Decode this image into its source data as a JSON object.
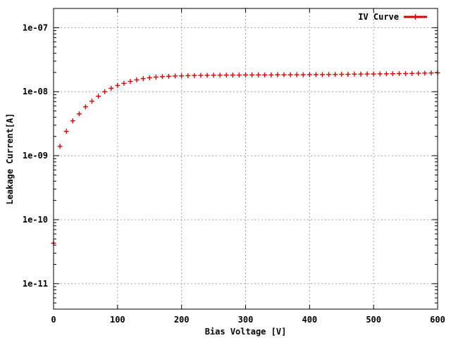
{
  "chart_data": {
    "type": "scatter",
    "xlabel": "Bias Voltage [V]",
    "ylabel": "Leakage Current[A]",
    "xlim": [
      0,
      600
    ],
    "ylim": [
      4e-12,
      2e-07
    ],
    "yscale": "log",
    "grid": true,
    "legend_position": "top-right",
    "x_ticks": [
      {
        "value": 0,
        "label": "0"
      },
      {
        "value": 100,
        "label": "100"
      },
      {
        "value": 200,
        "label": "200"
      },
      {
        "value": 300,
        "label": "300"
      },
      {
        "value": 400,
        "label": "400"
      },
      {
        "value": 500,
        "label": "500"
      },
      {
        "value": 600,
        "label": "600"
      }
    ],
    "y_ticks": [
      {
        "value": 1e-11,
        "label": "1e-11"
      },
      {
        "value": 1e-10,
        "label": "1e-10"
      },
      {
        "value": 1e-09,
        "label": "1e-09"
      },
      {
        "value": 1e-08,
        "label": "1e-08"
      },
      {
        "value": 1e-07,
        "label": "1e-07"
      }
    ],
    "series": [
      {
        "name": "IV Curve",
        "color": "#dd0000",
        "marker": "plus",
        "x": [
          0,
          10,
          20,
          30,
          40,
          50,
          60,
          70,
          80,
          90,
          100,
          110,
          120,
          130,
          140,
          150,
          160,
          170,
          180,
          190,
          200,
          210,
          220,
          230,
          240,
          250,
          260,
          270,
          280,
          290,
          300,
          310,
          320,
          330,
          340,
          350,
          360,
          370,
          380,
          390,
          400,
          410,
          420,
          430,
          440,
          450,
          460,
          470,
          480,
          490,
          500,
          510,
          520,
          530,
          540,
          550,
          560,
          570,
          580,
          590,
          600
        ],
        "y": [
          4.3e-11,
          1.4e-09,
          2.4e-09,
          3.5e-09,
          4.5e-09,
          5.8e-09,
          7.1e-09,
          8.5e-09,
          1e-08,
          1.13e-08,
          1.25e-08,
          1.35e-08,
          1.45e-08,
          1.53e-08,
          1.6e-08,
          1.65e-08,
          1.69e-08,
          1.72e-08,
          1.74e-08,
          1.76e-08,
          1.77e-08,
          1.78e-08,
          1.79e-08,
          1.8e-08,
          1.8e-08,
          1.81e-08,
          1.81e-08,
          1.82e-08,
          1.82e-08,
          1.82e-08,
          1.83e-08,
          1.83e-08,
          1.83e-08,
          1.83e-08,
          1.83e-08,
          1.84e-08,
          1.84e-08,
          1.84e-08,
          1.84e-08,
          1.84e-08,
          1.85e-08,
          1.85e-08,
          1.85e-08,
          1.86e-08,
          1.86e-08,
          1.87e-08,
          1.87e-08,
          1.88e-08,
          1.88e-08,
          1.89e-08,
          1.89e-08,
          1.9e-08,
          1.9e-08,
          1.91e-08,
          1.92e-08,
          1.92e-08,
          1.93e-08,
          1.94e-08,
          1.95e-08,
          1.96e-08,
          1.97e-08
        ]
      }
    ]
  }
}
